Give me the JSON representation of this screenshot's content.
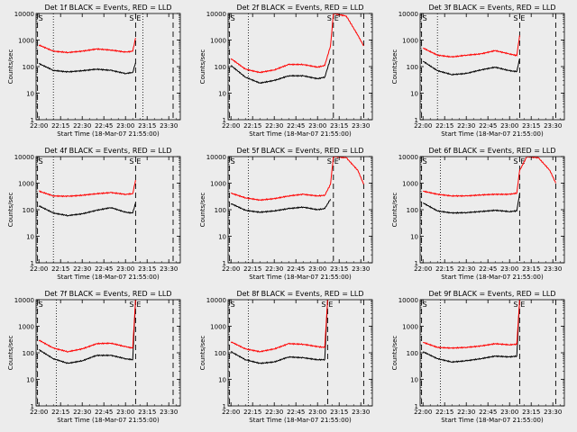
{
  "figure": {
    "start_time_label": "Start Time (18-Mar-07 21:55:00)",
    "y_label": "Counts/sec",
    "x_tick_labels": [
      "22:00",
      "22:15",
      "22:30",
      "22:45",
      "23:00",
      "23:15",
      "23:30"
    ],
    "y_tick_labels": [
      "1",
      "10",
      "100",
      "1000",
      "10000"
    ],
    "marker_S": "S",
    "marker_E": "E",
    "colors": {
      "background": "#ececec",
      "events": "#000000",
      "lld": "#ff0000"
    }
  },
  "chart_data": [
    {
      "type": "line",
      "title": "Det 1f BLACK = Events, RED = LLD",
      "xlabel": "Start Time (18-Mar-07 21:55:00)",
      "ylabel": "Counts/sec",
      "y_scale": "log",
      "ylim": [
        1,
        10000
      ],
      "xlim": [
        "21:58",
        "23:38"
      ],
      "x": [
        "22:00",
        "22:10",
        "22:20",
        "22:30",
        "22:40",
        "22:50",
        "23:00",
        "23:05",
        "23:07"
      ],
      "series": [
        {
          "name": "Events",
          "color": "#000000",
          "values": [
            130,
            72,
            63,
            70,
            80,
            72,
            55,
            60,
            140
          ]
        },
        {
          "name": "LLD",
          "color": "#ff0000",
          "values": [
            650,
            380,
            340,
            380,
            460,
            420,
            350,
            380,
            1200
          ]
        }
      ],
      "vlines_dotted": [
        "22:10",
        "23:12"
      ],
      "vlines_dashed": [
        "21:59",
        "23:07",
        "23:33"
      ]
    },
    {
      "type": "line",
      "title": "Det 2f BLACK = Events, RED = LLD",
      "xlabel": "Start Time (18-Mar-07 21:55:00)",
      "ylabel": "Counts/sec",
      "y_scale": "log",
      "ylim": [
        1,
        10000
      ],
      "xlim": [
        "21:58",
        "23:38"
      ],
      "x": [
        "22:00",
        "22:10",
        "22:20",
        "22:30",
        "22:40",
        "22:50",
        "23:00",
        "23:05",
        "23:09",
        "23:11",
        "23:20",
        "23:28",
        "23:32"
      ],
      "series": [
        {
          "name": "Events",
          "color": "#000000",
          "values": [
            110,
            40,
            24,
            30,
            45,
            45,
            35,
            40,
            200,
            null,
            null,
            null,
            null
          ]
        },
        {
          "name": "LLD",
          "color": "#ff0000",
          "values": [
            200,
            80,
            60,
            75,
            120,
            120,
            95,
            110,
            600,
            10000,
            8000,
            1500,
            600
          ]
        }
      ],
      "vlines_dotted": [
        "22:12"
      ],
      "vlines_dashed": [
        "21:59",
        "23:11",
        "23:32"
      ]
    },
    {
      "type": "line",
      "title": "Det 3f BLACK = Events, RED = LLD",
      "xlabel": "Start Time (18-Mar-07 21:55:00)",
      "ylabel": "Counts/sec",
      "y_scale": "log",
      "ylim": [
        1,
        10000
      ],
      "xlim": [
        "21:58",
        "23:38"
      ],
      "x": [
        "22:00",
        "22:10",
        "22:20",
        "22:30",
        "22:40",
        "22:50",
        "23:00",
        "23:05",
        "23:07"
      ],
      "series": [
        {
          "name": "Events",
          "color": "#000000",
          "values": [
            160,
            70,
            50,
            55,
            75,
            95,
            70,
            65,
            200
          ]
        },
        {
          "name": "LLD",
          "color": "#ff0000",
          "values": [
            500,
            270,
            230,
            270,
            300,
            400,
            300,
            260,
            1500
          ]
        }
      ],
      "vlines_dotted": [
        "22:10"
      ],
      "vlines_dashed": [
        "21:59",
        "23:07",
        "23:32"
      ]
    },
    {
      "type": "line",
      "title": "Det 4f BLACK = Events, RED = LLD",
      "xlabel": "Start Time (18-Mar-07 21:55:00)",
      "ylabel": "Counts/sec",
      "y_scale": "log",
      "ylim": [
        1,
        10000
      ],
      "xlim": [
        "21:58",
        "23:38"
      ],
      "x": [
        "22:00",
        "22:10",
        "22:20",
        "22:30",
        "22:40",
        "22:50",
        "23:00",
        "23:05",
        "23:07"
      ],
      "series": [
        {
          "name": "Events",
          "color": "#000000",
          "values": [
            140,
            75,
            60,
            70,
            95,
            120,
            80,
            75,
            180
          ]
        },
        {
          "name": "LLD",
          "color": "#ff0000",
          "values": [
            500,
            330,
            320,
            350,
            400,
            440,
            380,
            400,
            1300
          ]
        }
      ],
      "vlines_dotted": [
        "22:10"
      ],
      "vlines_dashed": [
        "21:59",
        "23:07",
        "23:33"
      ]
    },
    {
      "type": "line",
      "title": "Det 5f BLACK = Events, RED = LLD",
      "xlabel": "Start Time (18-Mar-07 21:55:00)",
      "ylabel": "Counts/sec",
      "y_scale": "log",
      "ylim": [
        1,
        10000
      ],
      "xlim": [
        "21:58",
        "23:38"
      ],
      "x": [
        "22:00",
        "22:10",
        "22:20",
        "22:30",
        "22:40",
        "22:50",
        "23:00",
        "23:05",
        "23:09",
        "23:11",
        "23:20",
        "23:28",
        "23:32"
      ],
      "series": [
        {
          "name": "Events",
          "color": "#000000",
          "values": [
            170,
            95,
            80,
            90,
            110,
            125,
            100,
            110,
            250,
            null,
            null,
            null,
            null
          ]
        },
        {
          "name": "LLD",
          "color": "#ff0000",
          "values": [
            420,
            280,
            230,
            260,
            330,
            380,
            330,
            350,
            900,
            10000,
            9000,
            3000,
            900
          ]
        }
      ],
      "vlines_dotted": [
        "22:12"
      ],
      "vlines_dashed": [
        "21:59",
        "23:11",
        "23:32"
      ]
    },
    {
      "type": "line",
      "title": "Det 6f BLACK = Events, RED = LLD",
      "xlabel": "Start Time (18-Mar-07 21:55:00)",
      "ylabel": "Counts/sec",
      "y_scale": "log",
      "ylim": [
        1,
        10000
      ],
      "xlim": [
        "21:58",
        "23:38"
      ],
      "x": [
        "22:00",
        "22:10",
        "22:20",
        "22:30",
        "22:40",
        "22:50",
        "23:00",
        "23:05",
        "23:07",
        "23:12",
        "23:20",
        "23:28",
        "23:32"
      ],
      "series": [
        {
          "name": "Events",
          "color": "#000000",
          "values": [
            180,
            90,
            75,
            78,
            85,
            95,
            85,
            90,
            400,
            null,
            null,
            null,
            null
          ]
        },
        {
          "name": "LLD",
          "color": "#ff0000",
          "values": [
            500,
            380,
            330,
            330,
            360,
            380,
            380,
            420,
            3000,
            10000,
            9000,
            3000,
            1000
          ]
        }
      ],
      "vlines_dotted": [
        "22:12"
      ],
      "vlines_dashed": [
        "21:59",
        "23:07",
        "23:32"
      ]
    },
    {
      "type": "line",
      "title": "Det 7f BLACK = Events, RED = LLD",
      "xlabel": "Start Time (18-Mar-07 21:55:00)",
      "ylabel": "Counts/sec",
      "y_scale": "log",
      "ylim": [
        1,
        10000
      ],
      "xlim": [
        "21:58",
        "23:38"
      ],
      "x": [
        "22:00",
        "22:10",
        "22:20",
        "22:30",
        "22:40",
        "22:50",
        "23:00",
        "23:05",
        "23:07"
      ],
      "series": [
        {
          "name": "Events",
          "color": "#000000",
          "values": [
            130,
            60,
            40,
            50,
            80,
            80,
            60,
            55,
            10000
          ]
        },
        {
          "name": "LLD",
          "color": "#ff0000",
          "values": [
            300,
            150,
            110,
            140,
            220,
            230,
            170,
            150,
            10000
          ]
        }
      ],
      "vlines_dotted": [
        "22:12"
      ],
      "vlines_dashed": [
        "21:59",
        "23:07",
        "23:33"
      ]
    },
    {
      "type": "line",
      "title": "Det 8f BLACK = Events, RED = LLD",
      "xlabel": "Start Time (18-Mar-07 21:55:00)",
      "ylabel": "Counts/sec",
      "y_scale": "log",
      "ylim": [
        1,
        10000
      ],
      "xlim": [
        "21:58",
        "23:38"
      ],
      "x": [
        "22:00",
        "22:10",
        "22:20",
        "22:30",
        "22:40",
        "22:50",
        "23:00",
        "23:05",
        "23:07"
      ],
      "series": [
        {
          "name": "Events",
          "color": "#000000",
          "values": [
            110,
            55,
            40,
            45,
            70,
            65,
            55,
            55,
            10000
          ]
        },
        {
          "name": "LLD",
          "color": "#ff0000",
          "values": [
            260,
            140,
            110,
            140,
            220,
            210,
            170,
            160,
            10000
          ]
        }
      ],
      "vlines_dotted": [
        "22:12"
      ],
      "vlines_dashed": [
        "21:59",
        "23:07",
        "23:32"
      ]
    },
    {
      "type": "line",
      "title": "Det 9f BLACK = Events, RED = LLD",
      "xlabel": "Start Time (18-Mar-07 21:55:00)",
      "ylabel": "Counts/sec",
      "y_scale": "log",
      "ylim": [
        1,
        10000
      ],
      "xlim": [
        "21:58",
        "23:38"
      ],
      "x": [
        "22:00",
        "22:10",
        "22:20",
        "22:30",
        "22:40",
        "22:50",
        "23:00",
        "23:05",
        "23:07"
      ],
      "series": [
        {
          "name": "Events",
          "color": "#000000",
          "values": [
            110,
            60,
            45,
            50,
            60,
            75,
            70,
            75,
            10000
          ]
        },
        {
          "name": "LLD",
          "color": "#ff0000",
          "values": [
            250,
            160,
            150,
            160,
            180,
            220,
            200,
            210,
            10000
          ]
        }
      ],
      "vlines_dotted": [
        "22:12"
      ],
      "vlines_dashed": [
        "21:59",
        "23:07",
        "23:32"
      ]
    }
  ]
}
